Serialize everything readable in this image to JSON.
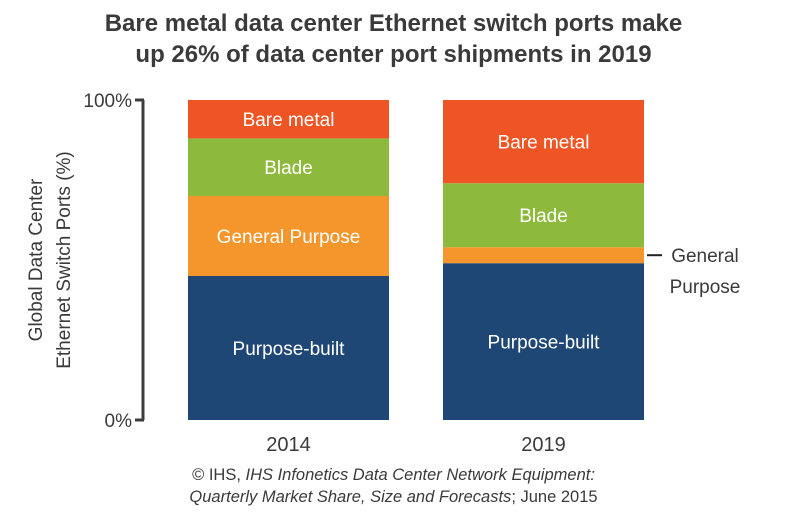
{
  "title_lines": [
    "Bare metal data center Ethernet switch ports make",
    "up 26% of data center port shipments in 2019"
  ],
  "footer": {
    "copyright": "© IHS, ",
    "source_title_line1": "IHS Infonetics Data Center Network Equipment:",
    "source_title_line2": "Quarterly Market Share, Size and Forecasts",
    "date": "; June 2015"
  },
  "colors": {
    "Purpose-built": "#1f4775",
    "General Purpose": "#f4962b",
    "Blade": "#8dba3c",
    "Bare metal": "#ee5424",
    "axis": "#3c3c3c"
  },
  "chart_data": {
    "type": "bar",
    "stacked": true,
    "categories": [
      "2014",
      "2019"
    ],
    "ylabel_lines": [
      "Global Data Center",
      "Ethernet Switch Ports (%)"
    ],
    "ylim": [
      0,
      100
    ],
    "yticks": [
      {
        "value": 0,
        "label": "0%"
      },
      {
        "value": 100,
        "label": "100%"
      }
    ],
    "series": [
      {
        "name": "Purpose-built",
        "values": [
          45,
          49
        ]
      },
      {
        "name": "General Purpose",
        "values": [
          25,
          5
        ]
      },
      {
        "name": "Blade",
        "values": [
          18,
          20
        ]
      },
      {
        "name": "Bare metal",
        "values": [
          12,
          26
        ]
      }
    ],
    "external_label": {
      "category": "2019",
      "series": "General Purpose",
      "lines": [
        "General",
        "Purpose"
      ]
    }
  }
}
